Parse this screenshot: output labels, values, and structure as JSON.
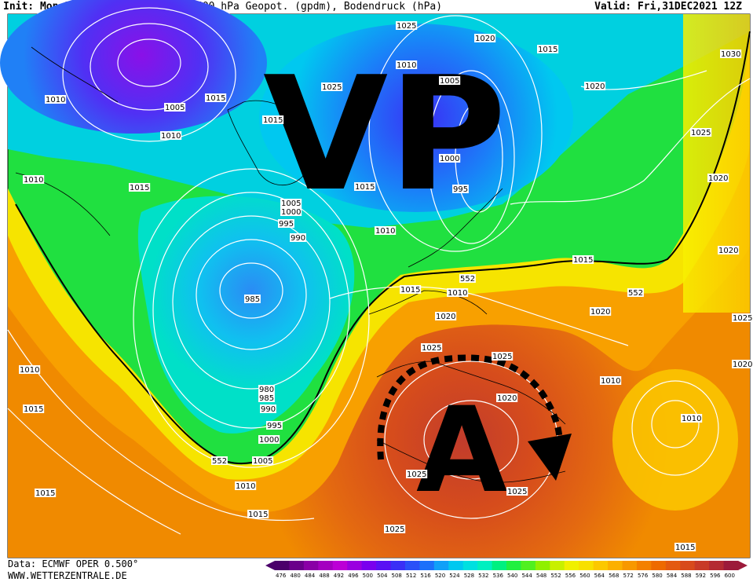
{
  "header": {
    "init": "Init: Mon,27DEC2021 12Z",
    "title": "500 hPa Geopot. (gpdm), Bodendruck (hPa)",
    "valid": "Valid: Fri,31DEC2021 12Z"
  },
  "footer": {
    "source": "Data: ECMWF OPER 0.500°",
    "site": "WWW.WETTERZENTRALE.DE"
  },
  "overlay": {
    "vp_label": "VP",
    "a_label": "A"
  },
  "isobar_labels": [
    {
      "text": "1025"
    },
    {
      "text": "1020"
    },
    {
      "text": "1015"
    },
    {
      "text": "1030"
    },
    {
      "text": "1010"
    },
    {
      "text": "1005"
    },
    {
      "text": "1015"
    },
    {
      "text": "1025"
    },
    {
      "text": "1015"
    },
    {
      "text": "1005"
    },
    {
      "text": "1020"
    },
    {
      "text": "1010"
    },
    {
      "text": "1010"
    },
    {
      "text": "1015"
    },
    {
      "text": "1000"
    },
    {
      "text": "1025"
    },
    {
      "text": "1020"
    },
    {
      "text": "1010"
    },
    {
      "text": "1015"
    },
    {
      "text": "995"
    },
    {
      "text": "1005"
    },
    {
      "text": "1000"
    },
    {
      "text": "995"
    },
    {
      "text": "990"
    },
    {
      "text": "1010"
    },
    {
      "text": "1015"
    },
    {
      "text": "1020"
    },
    {
      "text": "985"
    },
    {
      "text": "552"
    },
    {
      "text": "1015"
    },
    {
      "text": "1010"
    },
    {
      "text": "552"
    },
    {
      "text": "1020"
    },
    {
      "text": "1020"
    },
    {
      "text": "1025"
    },
    {
      "text": "1025"
    },
    {
      "text": "1025"
    },
    {
      "text": "1020"
    },
    {
      "text": "1020"
    },
    {
      "text": "1010"
    },
    {
      "text": "1015"
    },
    {
      "text": "980"
    },
    {
      "text": "985"
    },
    {
      "text": "990"
    },
    {
      "text": "995"
    },
    {
      "text": "1000"
    },
    {
      "text": "1005"
    },
    {
      "text": "552"
    },
    {
      "text": "1010"
    },
    {
      "text": "1015"
    },
    {
      "text": "1015"
    },
    {
      "text": "1010"
    },
    {
      "text": "1025"
    },
    {
      "text": "1025"
    },
    {
      "text": "1025"
    },
    {
      "text": "1010"
    },
    {
      "text": "1015"
    },
    {
      "text": "1020"
    },
    {
      "text": "1020"
    }
  ],
  "colorbar": {
    "labels": [
      "476",
      "480",
      "484",
      "488",
      "492",
      "496",
      "500",
      "504",
      "508",
      "512",
      "516",
      "520",
      "524",
      "528",
      "532",
      "536",
      "540",
      "544",
      "548",
      "552",
      "556",
      "560",
      "564",
      "568",
      "572",
      "576",
      "580",
      "584",
      "588",
      "592",
      "596",
      "600"
    ],
    "colors": [
      "#4a006a",
      "#6a008a",
      "#8a00a6",
      "#a400c0",
      "#bc00d6",
      "#9a00e0",
      "#7a00ee",
      "#5a10f4",
      "#3a30f6",
      "#2a50f8",
      "#1c70fa",
      "#10a0f8",
      "#00c8f0",
      "#00e0e0",
      "#00f0c0",
      "#00f080",
      "#20f040",
      "#50f020",
      "#90f000",
      "#c8f000",
      "#f0f000",
      "#f8e000",
      "#fcc800",
      "#fcb000",
      "#f89800",
      "#f48000",
      "#ee6a00",
      "#e45a10",
      "#d84a1c",
      "#c83a28",
      "#b42a32",
      "#9c1a3a"
    ]
  },
  "colors": {
    "deep_low": "#7a10f0",
    "low": "#00b0f0",
    "mid": "#30e050",
    "ridge": "#f0f000",
    "high": "#e06010",
    "core": "#c83a28"
  }
}
